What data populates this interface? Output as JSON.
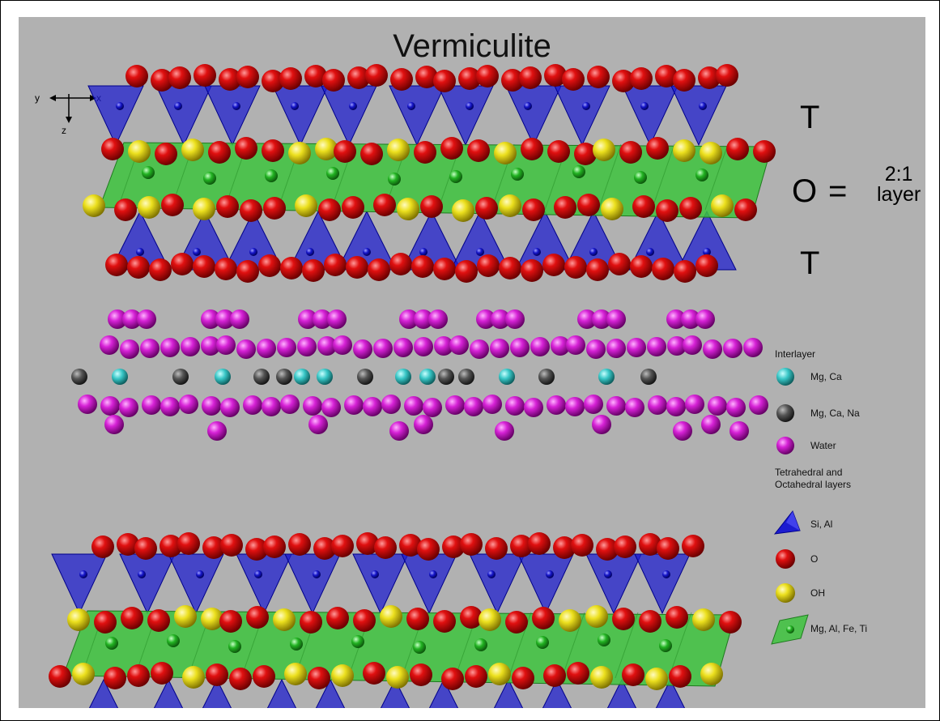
{
  "title": "Vermiculite",
  "axes": {
    "y": "y",
    "x": "x",
    "z": "z"
  },
  "structure": {
    "tetrahedral_top": "T",
    "octahedral": "O",
    "equals": "=",
    "ratio_top": "2:1",
    "ratio_bottom": "layer",
    "tetrahedral_bottom": "T"
  },
  "legend": {
    "interlayer_heading": "Interlayer",
    "interlayer_items": [
      {
        "label": "Mg, Ca",
        "icon": "cyan-sphere-icon",
        "color": "#3fc9c9"
      },
      {
        "label": "Mg, Ca, Na",
        "icon": "gray-sphere-icon",
        "color": "#555555"
      },
      {
        "label": "Water",
        "icon": "magenta-sphere-icon",
        "color": "#d21fd2"
      }
    ],
    "layers_heading_1": "Tetrahedral and",
    "layers_heading_2": "Octahedral layers",
    "layer_items": [
      {
        "label": "Si, Al",
        "icon": "blue-tetrahedron-icon",
        "color": "#1a1acc"
      },
      {
        "label": "O",
        "icon": "red-sphere-icon",
        "color": "#d00000"
      },
      {
        "label": "OH",
        "icon": "yellow-sphere-icon",
        "color": "#e6d81a"
      },
      {
        "label": "Mg, Al, Fe, Ti",
        "icon": "green-octahedron-icon",
        "color": "#3cc03c"
      }
    ]
  }
}
